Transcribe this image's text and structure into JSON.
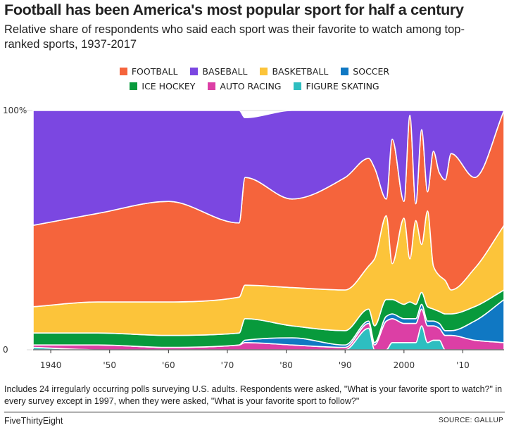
{
  "header": {
    "title": "Football has been America's most popular sport for half a century",
    "subtitle": "Relative share of respondents who said each sport was their favorite to watch among top-ranked sports, 1937-2017"
  },
  "footnote": "Includes 24 irregularly occurring polls surveying U.S. adults. Respondents were asked, \"What is your favorite sport to watch?\" in every survey except in 1997, when they were asked, \"What is your favorite sport to follow?\"",
  "brand": "FiveThirtyEight",
  "source": "SOURCE: GALLUP",
  "chart_data": {
    "type": "area",
    "stacked": "100%",
    "xlim": [
      1937,
      2017
    ],
    "ylim": [
      0,
      100
    ],
    "x_ticks": [
      1940,
      1950,
      1960,
      1970,
      1980,
      1990,
      2000,
      2010
    ],
    "x_tick_labels": [
      "1940",
      "'50",
      "'60",
      "'70",
      "'80",
      "'90",
      "2000",
      "'10"
    ],
    "y_ticks": [
      0,
      100
    ],
    "y_tick_labels": [
      "0",
      "100%"
    ],
    "legend_position": "top-center",
    "x": [
      1937,
      1948,
      1960,
      1972,
      1973,
      1981,
      1990,
      1994,
      1995,
      1997,
      1998,
      2000,
      2001,
      2002,
      2003,
      2004,
      2005,
      2006,
      2007,
      2008,
      2012,
      2017
    ],
    "series": [
      {
        "name": "FIGURE SKATING",
        "color": "#2ebec0",
        "values": [
          1,
          0,
          0,
          0,
          0,
          0,
          0,
          9,
          0,
          0,
          3,
          3,
          3,
          3,
          10,
          3,
          4,
          4,
          0,
          0,
          0,
          0
        ]
      },
      {
        "name": "AUTO RACING",
        "color": "#dc3fa5",
        "values": [
          1,
          2,
          1,
          2,
          3,
          2,
          1,
          2,
          2,
          12,
          10,
          8,
          8,
          8,
          7,
          7,
          6,
          5,
          6,
          6,
          4,
          3
        ]
      },
      {
        "name": "SOCCER",
        "color": "#1078c3",
        "values": [
          0,
          0,
          0,
          0,
          1,
          3,
          1,
          1,
          1,
          2,
          2,
          2,
          2,
          2,
          2,
          2,
          2,
          2,
          2,
          2,
          8,
          18
        ]
      },
      {
        "name": "ICE HOCKEY",
        "color": "#089a3c",
        "values": [
          5,
          5,
          5,
          5,
          9,
          5,
          6,
          5,
          7,
          7,
          6,
          6,
          7,
          6,
          5,
          6,
          5,
          5,
          7,
          7,
          6,
          4
        ]
      },
      {
        "name": "BASKETBALL",
        "color": "#fcc43a",
        "values": [
          11,
          13,
          14,
          15,
          14,
          16,
          17,
          18,
          28,
          35,
          15,
          36,
          18,
          35,
          20,
          40,
          18,
          15,
          14,
          10,
          16,
          27
        ]
      },
      {
        "name": "FOOTBALL",
        "color": "#f5643c",
        "values": [
          34,
          37,
          42,
          31,
          45,
          37,
          47,
          45,
          38,
          7,
          52,
          7,
          60,
          7,
          48,
          8,
          48,
          43,
          42,
          57,
          38,
          48
        ]
      },
      {
        "name": "BASEBALL",
        "color": "#7b47e1",
        "values": [
          48,
          43,
          38,
          47,
          25,
          37,
          28,
          20,
          24,
          37,
          12,
          38,
          2,
          39,
          8,
          34,
          17,
          26,
          29,
          18,
          28,
          0
        ]
      }
    ]
  }
}
